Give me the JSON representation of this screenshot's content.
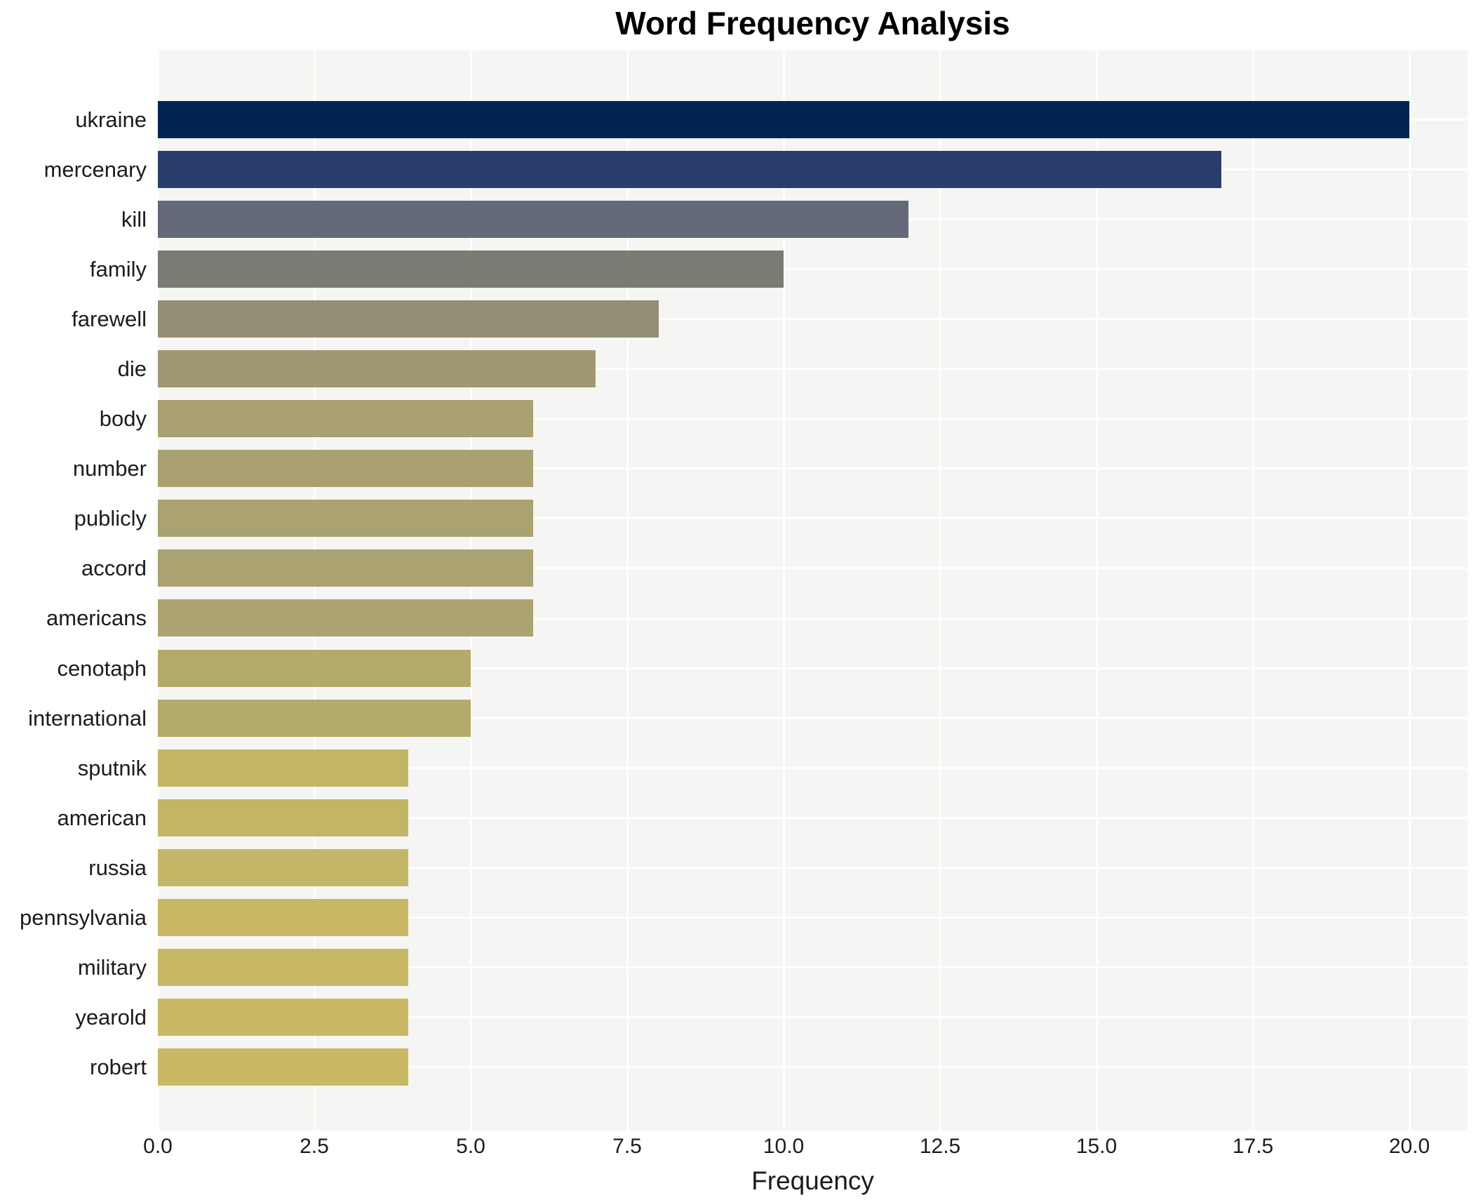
{
  "chart_data": {
    "type": "bar",
    "orientation": "horizontal",
    "title": "Word Frequency Analysis",
    "xlabel": "Frequency",
    "ylabel": "",
    "categories": [
      "ukraine",
      "mercenary",
      "kill",
      "family",
      "farewell",
      "die",
      "body",
      "number",
      "publicly",
      "accord",
      "americans",
      "cenotaph",
      "international",
      "sputnik",
      "american",
      "russia",
      "pennsylvania",
      "military",
      "yearold",
      "robert"
    ],
    "values": [
      20,
      17,
      12,
      10,
      8,
      7,
      6,
      6,
      6,
      6,
      6,
      5,
      5,
      4,
      4,
      4,
      4,
      4,
      4,
      4
    ],
    "bar_colors": [
      "#022452",
      "#2a3e6b",
      "#636979",
      "#7b7a73",
      "#948e76",
      "#a09873",
      "#a9a171",
      "#a9a171",
      "#aaa271",
      "#aaa271",
      "#aca372",
      "#b3aa6c",
      "#b3aa6c",
      "#c2b566",
      "#c2b566",
      "#c3b666",
      "#c8b865",
      "#c8b865",
      "#c9b964",
      "#c9b964"
    ],
    "xticks": [
      {
        "label": "0.0",
        "value": 0
      },
      {
        "label": "2.5",
        "value": 2.5
      },
      {
        "label": "5.0",
        "value": 5
      },
      {
        "label": "7.5",
        "value": 7.5
      },
      {
        "label": "10.0",
        "value": 10
      },
      {
        "label": "12.5",
        "value": 12.5
      },
      {
        "label": "15.0",
        "value": 15
      },
      {
        "label": "17.5",
        "value": 17.5
      },
      {
        "label": "20.0",
        "value": 20
      }
    ],
    "xlim": [
      0,
      20.93
    ],
    "grid": true,
    "legend": "none",
    "colors": {
      "plot_background": "#f5f5f3",
      "gridline": "#ffffff",
      "tick_text": "#1c1c1c",
      "title_text": "#000000"
    }
  }
}
